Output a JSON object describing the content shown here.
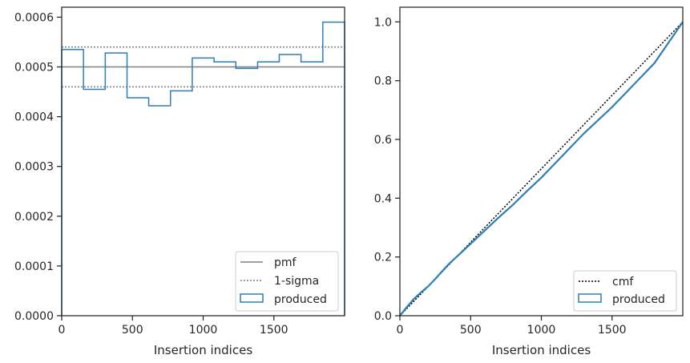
{
  "chart_data": [
    {
      "type": "step",
      "xlabel": "Insertion indices",
      "ylabel": "",
      "xlim": [
        0,
        2000
      ],
      "ylim": [
        0,
        0.00062
      ],
      "x_ticks": [
        0,
        500,
        1000,
        1500
      ],
      "x_tick_labels": [
        "0",
        "500",
        "1000",
        "1500"
      ],
      "y_ticks": [
        0,
        0.0001,
        0.0002,
        0.0003,
        0.0004,
        0.0005,
        0.0006
      ],
      "y_tick_labels": [
        "0.0000",
        "0.0001",
        "0.0002",
        "0.0003",
        "0.0004",
        "0.0005",
        "0.0006"
      ],
      "grid": false,
      "legend_position": "lower right",
      "pmf": {
        "name": "pmf",
        "value": 0.0005,
        "color": "#808080"
      },
      "sigma": {
        "name": "1-sigma",
        "values": [
          0.00046,
          0.00054
        ],
        "color": "#808080"
      },
      "produced": {
        "name": "produced",
        "color": "#2e7fb3",
        "bin_edges": [
          0,
          154,
          308,
          462,
          615,
          769,
          923,
          1077,
          1231,
          1385,
          1538,
          1692,
          1846,
          2000
        ],
        "values": [
          0.000535,
          0.000455,
          0.000528,
          0.000438,
          0.000422,
          0.000452,
          0.000518,
          0.00051,
          0.000497,
          0.00051,
          0.000525,
          0.00051,
          0.00059
        ]
      }
    },
    {
      "type": "line",
      "xlabel": "Insertion indices",
      "ylabel": "",
      "xlim": [
        0,
        2000
      ],
      "ylim": [
        0,
        1.05
      ],
      "x_ticks": [
        0,
        500,
        1000,
        1500
      ],
      "x_tick_labels": [
        "0",
        "500",
        "1000",
        "1500"
      ],
      "y_ticks": [
        0,
        0.2,
        0.4,
        0.6,
        0.8,
        1.0
      ],
      "y_tick_labels": [
        "0.0",
        "0.2",
        "0.4",
        "0.6",
        "0.8",
        "1.0"
      ],
      "grid": false,
      "legend_position": "lower right",
      "cmf": {
        "name": "cmf",
        "x": [
          0,
          2000
        ],
        "y": [
          0,
          1.0
        ],
        "color": "#000000"
      },
      "produced": {
        "name": "produced",
        "color": "#2e7fb3",
        "x": [
          0,
          50,
          100,
          150,
          200,
          250,
          300,
          350,
          400,
          450,
          500,
          600,
          700,
          800,
          900,
          1000,
          1100,
          1200,
          1300,
          1400,
          1500,
          1600,
          1700,
          1800,
          1900,
          2000
        ],
        "y": [
          0,
          0.03,
          0.058,
          0.08,
          0.1,
          0.125,
          0.152,
          0.178,
          0.2,
          0.222,
          0.245,
          0.29,
          0.335,
          0.378,
          0.425,
          0.47,
          0.52,
          0.57,
          0.62,
          0.665,
          0.71,
          0.76,
          0.81,
          0.86,
          0.93,
          1.0
        ]
      }
    }
  ]
}
